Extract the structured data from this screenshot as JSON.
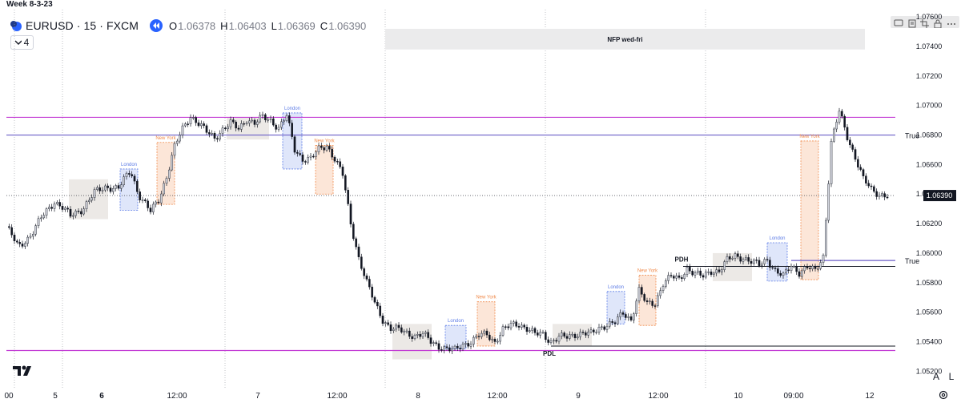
{
  "page_note": "Week 8-3-23",
  "header": {
    "symbol": "EURUSD · 15 · FXCM",
    "ohlc": [
      {
        "label": "O",
        "value": "1.06378"
      },
      {
        "label": "H",
        "value": "1.06403"
      },
      {
        "label": "L",
        "value": "1.06369"
      },
      {
        "label": "C",
        "value": "1.06390"
      }
    ],
    "indicator_toggle": "4"
  },
  "colors": {
    "up": "#d1d4dc",
    "down": "#131722",
    "wick": "#131722",
    "purple": "#c23bd4",
    "blue_line": "#6c5fc7",
    "london_fill": "#dfe6fa",
    "london_border": "#5d7ce6",
    "ny_fill": "#fce6d8",
    "ny_border": "#f08a4b",
    "gray_box": "#ece9e6",
    "nfp": "#ebebec",
    "price_badge": "#131722"
  },
  "chart_data": {
    "type": "candlestick",
    "ylim": [
      1.0512,
      1.0765
    ],
    "y_ticks": [
      "1.05200",
      "1.05400",
      "1.05600",
      "1.05800",
      "1.06000",
      "1.06200",
      "1.06400",
      "1.06600",
      "1.06800",
      "1.07000",
      "1.07200",
      "1.07400",
      "1.07600"
    ],
    "x_ticks": [
      "00",
      "5",
      "6",
      "12:00",
      "7",
      "12:00",
      "8",
      "12:00",
      "9",
      "12:00",
      "10",
      "09:00",
      "12"
    ],
    "bold_x_ticks": [
      "6"
    ],
    "path_points": [
      [
        0,
        1.0618
      ],
      [
        1.5,
        1.0604
      ],
      [
        3,
        1.0612
      ],
      [
        4.5,
        1.0625
      ],
      [
        6,
        1.0635
      ],
      [
        7,
        1.0631
      ],
      [
        8,
        1.0625
      ],
      [
        9.5,
        1.063
      ],
      [
        11,
        1.0641
      ],
      [
        12.5,
        1.0645
      ],
      [
        14,
        1.0644
      ],
      [
        15.5,
        1.0656
      ],
      [
        16.5,
        1.064
      ],
      [
        18,
        1.0628
      ],
      [
        19,
        1.0636
      ],
      [
        20,
        1.0652
      ],
      [
        21,
        1.0672
      ],
      [
        22,
        1.0684
      ],
      [
        23,
        1.0693
      ],
      [
        24,
        1.0688
      ],
      [
        25,
        1.0682
      ],
      [
        26,
        1.0678
      ],
      [
        27,
        1.0684
      ],
      [
        28,
        1.0688
      ],
      [
        29,
        1.0684
      ],
      [
        30,
        1.0691
      ],
      [
        31,
        1.0688
      ],
      [
        32,
        1.0692
      ],
      [
        33,
        1.069
      ],
      [
        34,
        1.0685
      ],
      [
        35,
        1.0693
      ],
      [
        36,
        1.067
      ],
      [
        37,
        1.0664
      ],
      [
        38,
        1.0664
      ],
      [
        39,
        1.067
      ],
      [
        40,
        1.0673
      ],
      [
        41,
        1.0664
      ],
      [
        42,
        1.0653
      ],
      [
        43,
        1.062
      ],
      [
        44,
        1.0597
      ],
      [
        45,
        1.058
      ],
      [
        46,
        1.0566
      ],
      [
        47,
        1.0555
      ],
      [
        48,
        1.0549
      ],
      [
        49,
        1.0548
      ],
      [
        50,
        1.0546
      ],
      [
        51,
        1.0544
      ],
      [
        52,
        1.0545
      ],
      [
        53,
        1.054
      ],
      [
        54,
        1.0537
      ],
      [
        55,
        1.0535
      ],
      [
        56,
        1.0534
      ],
      [
        57,
        1.0538
      ],
      [
        58,
        1.054
      ],
      [
        59,
        1.0544
      ],
      [
        60,
        1.0545
      ],
      [
        61,
        1.054
      ],
      [
        62,
        1.0548
      ],
      [
        63,
        1.0551
      ],
      [
        64,
        1.0552
      ],
      [
        65,
        1.0549
      ],
      [
        66,
        1.0545
      ],
      [
        67,
        1.0545
      ],
      [
        68,
        1.054
      ],
      [
        69,
        1.0543
      ],
      [
        70,
        1.0543
      ],
      [
        71,
        1.0545
      ],
      [
        72,
        1.0546
      ],
      [
        73,
        1.0545
      ],
      [
        74,
        1.0549
      ],
      [
        75,
        1.0552
      ],
      [
        76,
        1.0553
      ],
      [
        77,
        1.0559
      ],
      [
        78,
        1.0555
      ],
      [
        79,
        1.0575
      ],
      [
        80,
        1.0565
      ],
      [
        81,
        1.0566
      ],
      [
        82,
        1.058
      ],
      [
        83,
        1.0584
      ],
      [
        84,
        1.0582
      ],
      [
        85,
        1.059
      ],
      [
        86,
        1.0586
      ],
      [
        87,
        1.0584
      ],
      [
        88,
        1.0588
      ],
      [
        89,
        1.0588
      ],
      [
        90,
        1.0595
      ],
      [
        91,
        1.0598
      ],
      [
        92,
        1.0597
      ],
      [
        93,
        1.0594
      ],
      [
        94,
        1.0592
      ],
      [
        95,
        1.0596
      ],
      [
        96,
        1.0588
      ],
      [
        97,
        1.0584
      ],
      [
        98,
        1.0592
      ],
      [
        99,
        1.0587
      ],
      [
        100,
        1.059
      ],
      [
        101,
        1.0588
      ],
      [
        102,
        1.0598
      ],
      [
        103,
        1.0675
      ],
      [
        104,
        1.0696
      ],
      [
        105,
        1.0679
      ],
      [
        106,
        1.0665
      ],
      [
        107,
        1.065
      ],
      [
        108,
        1.0643
      ],
      [
        109,
        1.064
      ],
      [
        110,
        1.0639
      ]
    ],
    "x_span": [
      0,
      111
    ],
    "horizontal_lines": [
      {
        "price": 1.0692,
        "color": "purple",
        "x_from": 0,
        "label": ""
      },
      {
        "price": 1.068,
        "color": "blue_line",
        "x_from": 0,
        "label": "True"
      },
      {
        "price": 1.0534,
        "color": "purple",
        "x_from": 0,
        "label": ""
      },
      {
        "price": 1.0537,
        "color": "black",
        "x_from": 68,
        "label": "PDL"
      },
      {
        "price": 1.0591,
        "color": "black",
        "x_from": 84.5,
        "label": "PDH"
      },
      {
        "price": 1.0595,
        "color": "blue_line",
        "x_from": 98,
        "label": "True"
      }
    ],
    "last_price": "1.06390",
    "session_boxes": [
      {
        "label": "London",
        "type": "london",
        "x0": 14.2,
        "x1": 16.4,
        "high": 1.0657,
        "low": 1.0629
      },
      {
        "label": "New York",
        "type": "ny",
        "x0": 18.8,
        "x1": 21.0,
        "high": 1.0675,
        "low": 1.0633
      },
      {
        "label": "London",
        "type": "london",
        "x0": 34.5,
        "x1": 36.9,
        "high": 1.0695,
        "low": 1.0657
      },
      {
        "label": "New York",
        "type": "ny",
        "x0": 38.6,
        "x1": 40.8,
        "high": 1.0673,
        "low": 1.064
      },
      {
        "label": "London",
        "type": "london",
        "x0": 54.8,
        "x1": 57.4,
        "high": 1.0551,
        "low": 1.0535
      },
      {
        "label": "New York",
        "type": "ny",
        "x0": 58.8,
        "x1": 61.0,
        "high": 1.0567,
        "low": 1.0537
      },
      {
        "label": "London",
        "type": "london",
        "x0": 75.0,
        "x1": 77.2,
        "high": 1.0574,
        "low": 1.0552
      },
      {
        "label": "New York",
        "type": "ny",
        "x0": 79.0,
        "x1": 81.1,
        "high": 1.0585,
        "low": 1.0551
      },
      {
        "label": "London",
        "type": "london",
        "x0": 95.0,
        "x1": 97.5,
        "high": 1.0607,
        "low": 1.0581
      },
      {
        "label": "New York",
        "type": "ny",
        "x0": 99.2,
        "x1": 101.4,
        "high": 1.0676,
        "low": 1.0582
      }
    ],
    "gray_boxes": [
      {
        "x0": 7.8,
        "x1": 12.7,
        "high": 1.065,
        "low": 1.0623
      },
      {
        "x0": 27.5,
        "x1": 32.8,
        "high": 1.0692,
        "low": 1.0677
      },
      {
        "x0": 48.2,
        "x1": 53.1,
        "high": 1.0552,
        "low": 1.0528
      },
      {
        "x0": 68.2,
        "x1": 73.1,
        "high": 1.0552,
        "low": 1.0537
      },
      {
        "x0": 88.2,
        "x1": 93.1,
        "high": 1.06,
        "low": 1.0581
      }
    ],
    "nfp_box": {
      "label": "NFP wed-fri",
      "x0": 47.3,
      "x1": 107.2,
      "high": 1.0752,
      "low": 1.0738
    },
    "day_separators": [
      7.0,
      27.3,
      47.3,
      67.3,
      87.3
    ],
    "minor_separators": [
      1.0
    ],
    "_": ""
  }
}
